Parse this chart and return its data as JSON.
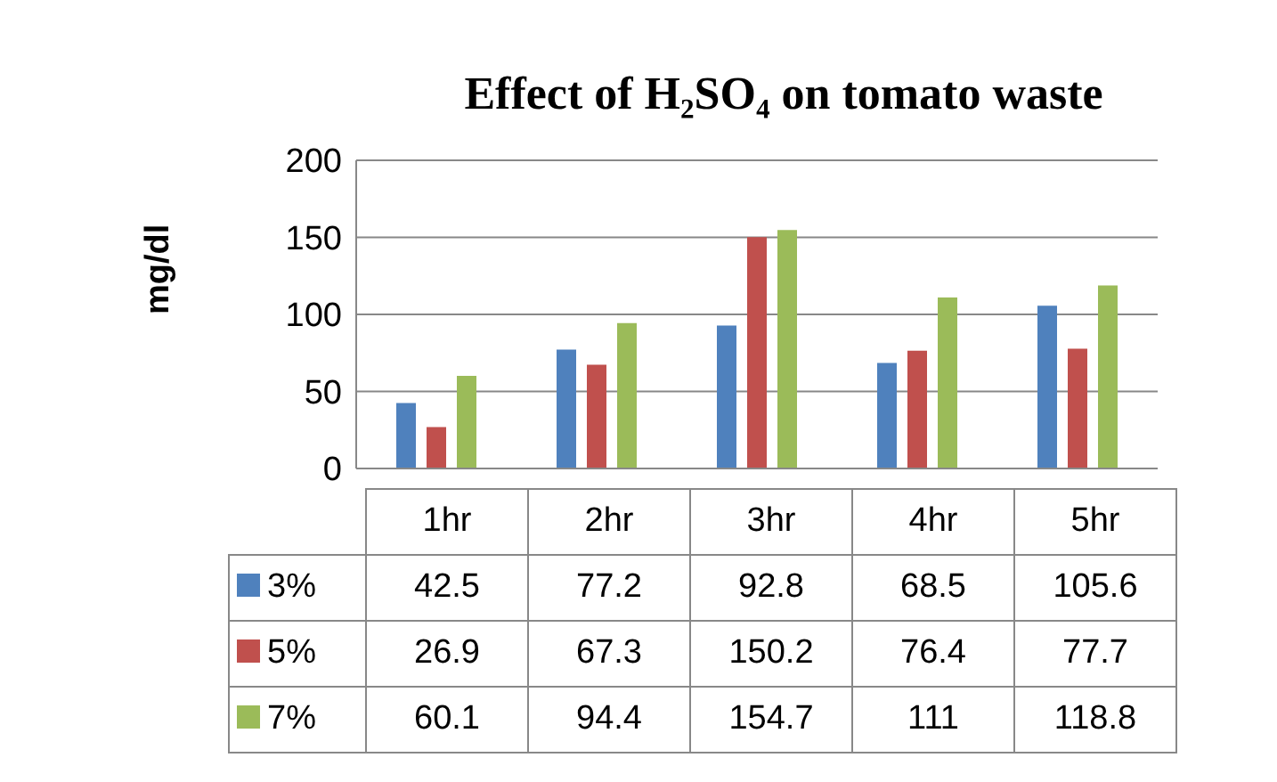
{
  "chart_data": {
    "type": "bar",
    "title": "Effect of H₂SO₄ on tomato waste",
    "ylabel": "mg/dl",
    "categories": [
      "1hr",
      "2hr",
      "3hr",
      "4hr",
      "5hr"
    ],
    "series": [
      {
        "name": "3%",
        "color": "#4f81bd",
        "values": [
          42.5,
          77.2,
          92.8,
          68.5,
          105.6
        ]
      },
      {
        "name": "5%",
        "color": "#c0504d",
        "values": [
          26.9,
          67.3,
          150.2,
          76.4,
          77.7
        ]
      },
      {
        "name": "7%",
        "color": "#9bbb59",
        "values": [
          60.1,
          94.4,
          154.7,
          111,
          118.8
        ]
      }
    ],
    "ylim": [
      0,
      200
    ],
    "yticks": [
      0,
      50,
      100,
      150,
      200
    ],
    "grid": "y",
    "legend": "bottom",
    "data_labels": true
  }
}
